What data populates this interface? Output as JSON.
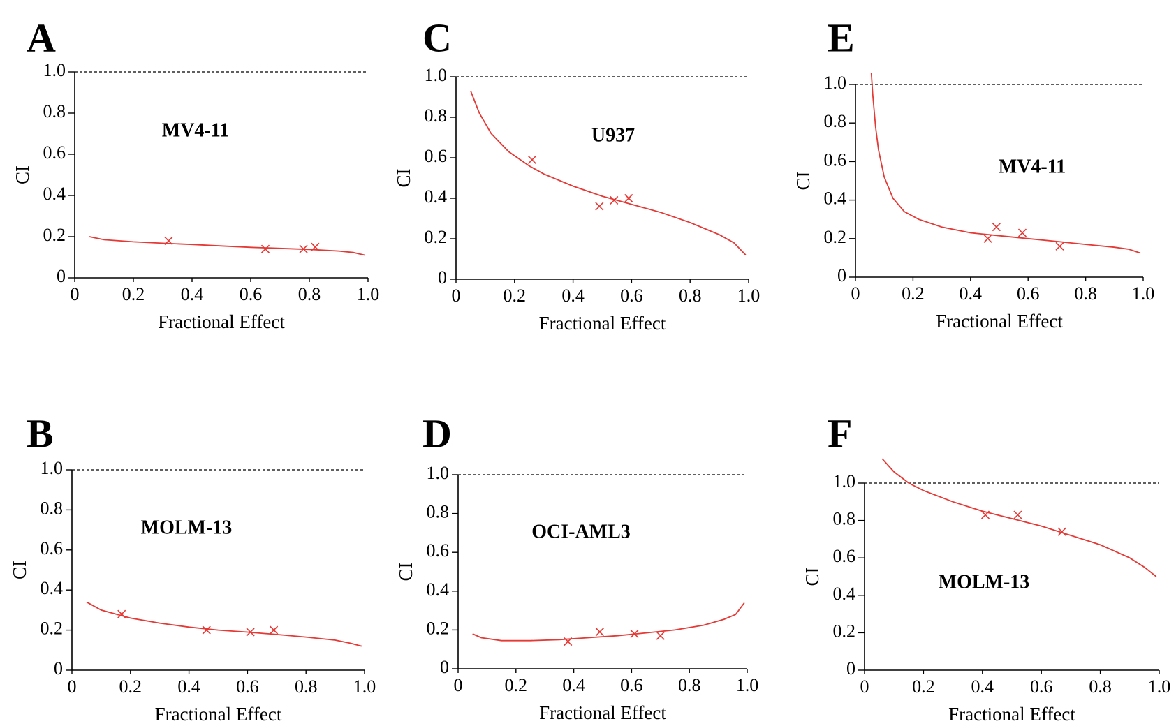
{
  "chart_data": [
    {
      "type": "scatter",
      "letter": "A",
      "cell_line": "MV4-11",
      "xlabel": "Fractional  Effect",
      "ylabel": "CI",
      "xlim": [
        0,
        1.0
      ],
      "ylim": [
        0,
        1.0
      ],
      "x_ticks": [
        "0",
        "0.2",
        "0.4",
        "0.6",
        "0.8",
        "1.0"
      ],
      "y_ticks": [
        "0",
        "0.2",
        "0.4",
        "0.6",
        "0.8",
        "1.0"
      ],
      "reference_line": 1.0,
      "points": [
        [
          0.32,
          0.18
        ],
        [
          0.65,
          0.14
        ],
        [
          0.78,
          0.14
        ],
        [
          0.82,
          0.15
        ]
      ],
      "curve": [
        [
          0.05,
          0.2
        ],
        [
          0.1,
          0.185
        ],
        [
          0.2,
          0.175
        ],
        [
          0.3,
          0.168
        ],
        [
          0.4,
          0.162
        ],
        [
          0.5,
          0.155
        ],
        [
          0.6,
          0.148
        ],
        [
          0.7,
          0.143
        ],
        [
          0.8,
          0.138
        ],
        [
          0.9,
          0.13
        ],
        [
          0.95,
          0.123
        ],
        [
          0.99,
          0.11
        ]
      ],
      "grid": false
    },
    {
      "type": "scatter",
      "letter": "B",
      "cell_line": "MOLM-13",
      "xlabel": "Fractional  Effect",
      "ylabel": "CI",
      "xlim": [
        0,
        1.0
      ],
      "ylim": [
        0,
        1.0
      ],
      "x_ticks": [
        "0",
        "0.2",
        "0.4",
        "0.6",
        "0.8",
        "1.0"
      ],
      "y_ticks": [
        "0",
        "0.2",
        "0.4",
        "0.6",
        "0.8",
        "1.0"
      ],
      "reference_line": 1.0,
      "points": [
        [
          0.17,
          0.28
        ],
        [
          0.46,
          0.2
        ],
        [
          0.61,
          0.19
        ],
        [
          0.69,
          0.2
        ]
      ],
      "curve": [
        [
          0.05,
          0.34
        ],
        [
          0.1,
          0.3
        ],
        [
          0.2,
          0.26
        ],
        [
          0.3,
          0.235
        ],
        [
          0.4,
          0.215
        ],
        [
          0.5,
          0.2
        ],
        [
          0.6,
          0.19
        ],
        [
          0.7,
          0.178
        ],
        [
          0.8,
          0.165
        ],
        [
          0.9,
          0.15
        ],
        [
          0.95,
          0.135
        ],
        [
          0.99,
          0.12
        ]
      ],
      "grid": false
    },
    {
      "type": "scatter",
      "letter": "C",
      "cell_line": "U937",
      "xlabel": "Fractional  Effect",
      "ylabel": "CI",
      "xlim": [
        0,
        1.0
      ],
      "ylim": [
        0,
        1.0
      ],
      "x_ticks": [
        "0",
        "0.2",
        "0.4",
        "0.6",
        "0.8",
        "1.0"
      ],
      "y_ticks": [
        "0",
        "0.2",
        "0.4",
        "0.6",
        "0.8",
        "1.0"
      ],
      "reference_line": 1.0,
      "points": [
        [
          0.26,
          0.59
        ],
        [
          0.49,
          0.36
        ],
        [
          0.54,
          0.39
        ],
        [
          0.59,
          0.4
        ]
      ],
      "curve": [
        [
          0.05,
          0.93
        ],
        [
          0.08,
          0.82
        ],
        [
          0.12,
          0.72
        ],
        [
          0.18,
          0.63
        ],
        [
          0.25,
          0.56
        ],
        [
          0.3,
          0.52
        ],
        [
          0.4,
          0.46
        ],
        [
          0.5,
          0.41
        ],
        [
          0.6,
          0.37
        ],
        [
          0.7,
          0.33
        ],
        [
          0.8,
          0.28
        ],
        [
          0.9,
          0.22
        ],
        [
          0.95,
          0.18
        ],
        [
          0.99,
          0.12
        ]
      ],
      "grid": false
    },
    {
      "type": "scatter",
      "letter": "D",
      "cell_line": "OCI-AML3",
      "xlabel": "Fractional  Effect",
      "ylabel": "CI",
      "xlim": [
        0,
        1.0
      ],
      "ylim": [
        0,
        1.0
      ],
      "x_ticks": [
        "0",
        "0.2",
        "0.4",
        "0.6",
        "0.8",
        "1.0"
      ],
      "y_ticks": [
        "0",
        "0.2",
        "0.4",
        "0.6",
        "0.8",
        "1.0"
      ],
      "reference_line": 1.0,
      "points": [
        [
          0.38,
          0.14
        ],
        [
          0.49,
          0.19
        ],
        [
          0.61,
          0.18
        ],
        [
          0.7,
          0.17
        ]
      ],
      "curve": [
        [
          0.05,
          0.18
        ],
        [
          0.08,
          0.16
        ],
        [
          0.15,
          0.145
        ],
        [
          0.25,
          0.145
        ],
        [
          0.35,
          0.15
        ],
        [
          0.45,
          0.16
        ],
        [
          0.55,
          0.17
        ],
        [
          0.65,
          0.185
        ],
        [
          0.75,
          0.2
        ],
        [
          0.85,
          0.225
        ],
        [
          0.92,
          0.255
        ],
        [
          0.96,
          0.28
        ],
        [
          0.99,
          0.34
        ]
      ],
      "grid": false
    },
    {
      "type": "scatter",
      "letter": "E",
      "cell_line": "MV4-11",
      "xlabel": "Fractional  Effect",
      "ylabel": "CI",
      "xlim": [
        0,
        1.0
      ],
      "ylim": [
        0,
        1.0
      ],
      "x_ticks": [
        "0",
        "0.2",
        "0.4",
        "0.6",
        "0.8",
        "1.0"
      ],
      "y_ticks": [
        "0",
        "0.2",
        "0.4",
        "0.6",
        "0.8",
        "1.0"
      ],
      "reference_line": 1.0,
      "points": [
        [
          0.46,
          0.2
        ],
        [
          0.49,
          0.26
        ],
        [
          0.58,
          0.23
        ],
        [
          0.71,
          0.16
        ]
      ],
      "curve": [
        [
          0.055,
          1.06
        ],
        [
          0.06,
          0.95
        ],
        [
          0.07,
          0.78
        ],
        [
          0.08,
          0.66
        ],
        [
          0.1,
          0.52
        ],
        [
          0.13,
          0.41
        ],
        [
          0.17,
          0.34
        ],
        [
          0.22,
          0.3
        ],
        [
          0.3,
          0.26
        ],
        [
          0.4,
          0.23
        ],
        [
          0.5,
          0.215
        ],
        [
          0.6,
          0.2
        ],
        [
          0.7,
          0.185
        ],
        [
          0.8,
          0.17
        ],
        [
          0.9,
          0.155
        ],
        [
          0.95,
          0.145
        ],
        [
          0.99,
          0.125
        ]
      ],
      "grid": false
    },
    {
      "type": "scatter",
      "letter": "F",
      "cell_line": "MOLM-13",
      "xlabel": "Fractional  Effect",
      "ylabel": "CI",
      "xlim": [
        0,
        1.0
      ],
      "ylim": [
        0,
        1.0
      ],
      "x_ticks": [
        "0",
        "0.2",
        "0.4",
        "0.6",
        "0.8",
        "1.0"
      ],
      "y_ticks": [
        "0",
        "0.2",
        "0.4",
        "0.6",
        "0.8",
        "1.0"
      ],
      "reference_line": 1.0,
      "points": [
        [
          0.41,
          0.83
        ],
        [
          0.52,
          0.83
        ],
        [
          0.67,
          0.74
        ]
      ],
      "curve": [
        [
          0.06,
          1.13
        ],
        [
          0.1,
          1.06
        ],
        [
          0.15,
          1.0
        ],
        [
          0.2,
          0.96
        ],
        [
          0.3,
          0.9
        ],
        [
          0.4,
          0.85
        ],
        [
          0.5,
          0.81
        ],
        [
          0.6,
          0.77
        ],
        [
          0.7,
          0.72
        ],
        [
          0.8,
          0.67
        ],
        [
          0.9,
          0.6
        ],
        [
          0.95,
          0.55
        ],
        [
          0.99,
          0.5
        ]
      ],
      "grid": false
    }
  ],
  "colors": {
    "curve": "#e53935",
    "axis": "#000000"
  }
}
